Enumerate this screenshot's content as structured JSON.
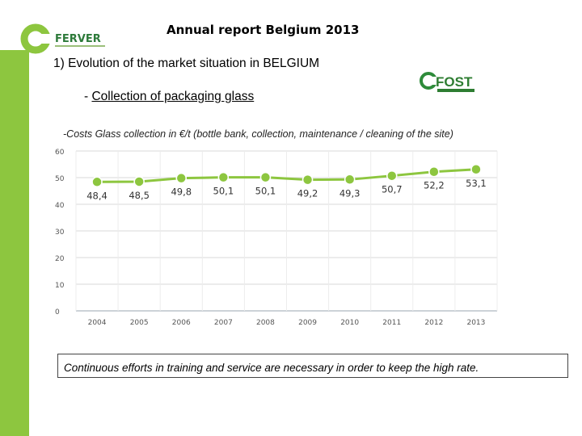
{
  "header": {
    "report_title": "Annual report Belgium 2013",
    "section_title": "1) Evolution of the market situation in BELGIUM",
    "sub_title_prefix": "- ",
    "sub_title": "Collection of packaging glass"
  },
  "logos": {
    "ferver_text": "FERVER",
    "fost_text": "FOST",
    "brand_green": "#8dc63f"
  },
  "chart_data": {
    "type": "line",
    "title": "-Costs Glass collection in €/t  (bottle bank, collection, maintenance / cleaning of the site)",
    "categories": [
      "2004",
      "2005",
      "2006",
      "2007",
      "2008",
      "2009",
      "2010",
      "2011",
      "2012",
      "2013"
    ],
    "values": [
      48.4,
      48.5,
      49.8,
      50.1,
      50.1,
      49.2,
      49.3,
      50.7,
      52.2,
      53.1
    ],
    "data_labels": [
      "48,4",
      "48,5",
      "49,8",
      "50,1",
      "50,1",
      "49,2",
      "49,3",
      "50,7",
      "52,2",
      "53,1"
    ],
    "ylim": [
      0,
      60
    ],
    "yticks": [
      "0",
      "10",
      "20",
      "30",
      "40",
      "50",
      "60"
    ],
    "grid": true,
    "line_color": "#8dc63f"
  },
  "note": "Continuous efforts in training and service are necessary in order to keep the high rate."
}
